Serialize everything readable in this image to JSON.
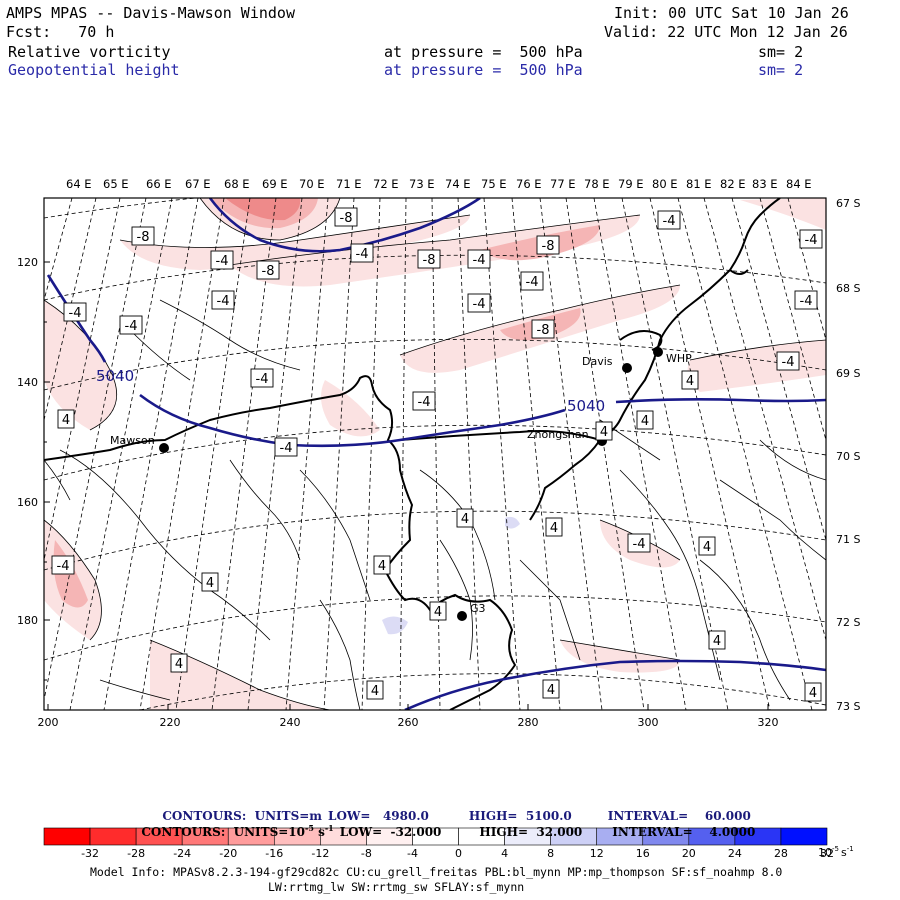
{
  "header": {
    "model": "AMPS MPAS -- Davis-Mawson Window",
    "init": "Init: 00 UTC Sat 10 Jan 26",
    "fcst": "Fcst:   70 h",
    "valid": "Valid: 22 UTC Mon 12 Jan 26",
    "field1": "Relative vorticity",
    "field1_level": "at pressure =  500 hPa",
    "field1_sm": "sm= 2",
    "field2": "Geopotential height",
    "field2_level": "at pressure =  500 hPa",
    "field2_sm": "sm= 2"
  },
  "map": {
    "top_lon_labels": [
      "64 E",
      "65 E",
      "66 E",
      "67 E",
      "68 E",
      "69 E",
      "70 E",
      "71 E",
      "72 E",
      "73 E",
      "74 E",
      "75 E",
      "76 E",
      "77 E",
      "78 E",
      "79 E",
      "80 E",
      "81 E",
      "82 E",
      "83 E",
      "84 E"
    ],
    "right_lat_labels": [
      "67 S",
      "68 S",
      "69 S",
      "70 S",
      "71 S",
      "72 S",
      "73 S"
    ],
    "left_y_labels": [
      "120",
      "140",
      "160",
      "180"
    ],
    "bottom_x_labels": [
      "200",
      "220",
      "240",
      "260",
      "280",
      "300",
      "320"
    ],
    "stations": [
      {
        "name": "Mawson"
      },
      {
        "name": "Davis"
      },
      {
        "name": "WHP"
      },
      {
        "name": "Zhongshan"
      },
      {
        "name": "G3"
      }
    ],
    "height_contour_label": "5040",
    "vort_labels": [
      "-8",
      "-8",
      "-8",
      "-8",
      "-8",
      "-8",
      "-4",
      "-4",
      "-4",
      "-4",
      "-4",
      "-4",
      "-4",
      "-4",
      "-4",
      "-4",
      "-4",
      "-4",
      "-4",
      "-4",
      "-4",
      "-4",
      "-4",
      "4",
      "4",
      "4",
      "4",
      "4",
      "4",
      "4",
      "4",
      "4",
      "4",
      "4",
      "4",
      "4",
      "4",
      "4"
    ],
    "colors": {
      "height": "#1a1a8a",
      "coast": "#000000",
      "neg_light": "#fbe2e2",
      "neg_mid": "#f5b5b5",
      "neg_dark": "#ee8a8a",
      "pos_light": "#dcdcf5"
    }
  },
  "contours_info": {
    "line1": {
      "label": "CONTOURS:  UNITS=m",
      "low": "LOW=   4980.0",
      "high": "HIGH=  5100.0",
      "interval": "INTERVAL=    60.000"
    },
    "line2": {
      "label": "CONTOURS:  UNITS=10",
      "units_exp": "-5",
      "units_tail": " s",
      "units_tail_exp": "-1",
      "low": "LOW=  -32.000",
      "high": "HIGH=  32.000",
      "interval": "INTERVAL=    4.0000"
    }
  },
  "colorbar": {
    "colors": [
      "#ff0000",
      "#ff2c2c",
      "#ff5252",
      "#ff7878",
      "#ff9c9c",
      "#ffbebe",
      "#ffdcdc",
      "#fff0f0",
      "#ffffff",
      "#ffffff",
      "#ecedfb",
      "#cdd0f6",
      "#a8aef1",
      "#8088ee",
      "#5560ef",
      "#2a35f5",
      "#0010ff"
    ],
    "tick_labels": [
      "-32",
      "-28",
      "-24",
      "-20",
      "-16",
      "-12",
      "-8",
      "-4",
      "0",
      "4",
      "8",
      "12",
      "16",
      "20",
      "24",
      "28",
      "32"
    ],
    "unit_base": "10",
    "unit_exp": "-5",
    "unit_tail": "s",
    "unit_tail_exp": "-1"
  },
  "footer": {
    "line1": "Model Info: MPASv8.2.3-194-gf29cd82c CU:cu_grell_freitas PBL:bl_mynn MP:mp_thompson SF:sf_noahmp 8.0",
    "line2": "LW:rrtmg_lw SW:rrtmg_sw SFLAY:sf_mynn"
  }
}
